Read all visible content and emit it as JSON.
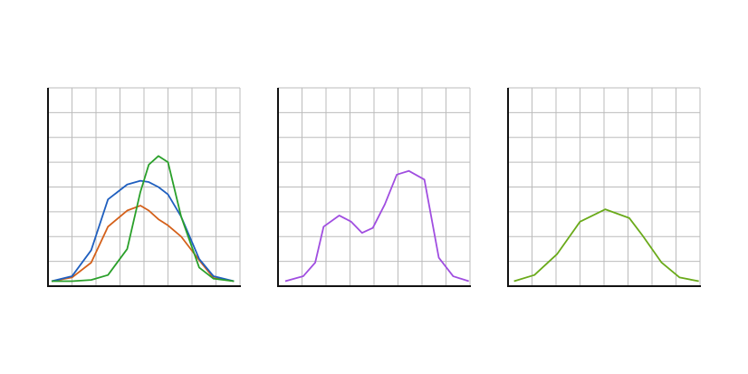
{
  "chart_data": [
    {
      "type": "line",
      "xlim": [
        0,
        8
      ],
      "ylim": [
        0,
        8
      ],
      "xticks": [
        0,
        1,
        2,
        3,
        4,
        5,
        6,
        7,
        8
      ],
      "yticks": [
        0,
        1,
        2,
        3,
        4,
        5,
        6,
        7,
        8
      ],
      "grid": true,
      "x": [
        0.15,
        1,
        1.8,
        2.5,
        3.3,
        3.85,
        4.2,
        4.6,
        5,
        5.55,
        6.3,
        6.9,
        7.75
      ],
      "series": [
        {
          "color": "#d4601a",
          "values": [
            0.2,
            0.35,
            0.95,
            2.4,
            3.05,
            3.25,
            3.05,
            2.7,
            2.45,
            2.0,
            1.05,
            0.33,
            0.2
          ]
        },
        {
          "color": "#1f5fbf",
          "values": [
            0.2,
            0.4,
            1.45,
            3.5,
            4.1,
            4.25,
            4.2,
            4.0,
            3.7,
            2.8,
            1.1,
            0.4,
            0.2
          ]
        },
        {
          "color": "#2aa02a",
          "values": [
            0.2,
            0.2,
            0.25,
            0.45,
            1.5,
            3.8,
            4.9,
            5.25,
            5.0,
            2.8,
            0.75,
            0.3,
            0.2
          ]
        }
      ]
    },
    {
      "type": "line",
      "xlim": [
        0,
        8
      ],
      "ylim": [
        0,
        8
      ],
      "xticks": [
        0,
        1,
        2,
        3,
        4,
        5,
        6,
        7,
        8
      ],
      "yticks": [
        0,
        1,
        2,
        3,
        4,
        5,
        6,
        7,
        8
      ],
      "grid": true,
      "x": [
        0.3,
        1.05,
        1.55,
        1.9,
        2.55,
        3.05,
        3.5,
        3.95,
        4.45,
        4.95,
        5.45,
        6.1,
        6.7,
        7.3,
        7.95
      ],
      "series": [
        {
          "color": "#a04ee0",
          "values": [
            0.2,
            0.4,
            0.95,
            2.4,
            2.85,
            2.6,
            2.15,
            2.35,
            3.3,
            4.5,
            4.65,
            4.3,
            1.15,
            0.4,
            0.2
          ]
        }
      ]
    },
    {
      "type": "line",
      "xlim": [
        0,
        8
      ],
      "ylim": [
        0,
        8
      ],
      "xticks": [
        0,
        1,
        2,
        3,
        4,
        5,
        6,
        7,
        8
      ],
      "yticks": [
        0,
        1,
        2,
        3,
        4,
        5,
        6,
        7,
        8
      ],
      "grid": true,
      "x": [
        0.25,
        1.1,
        2.05,
        3,
        4.05,
        5.05,
        5.6,
        6.4,
        7.15,
        7.95
      ],
      "series": [
        {
          "color": "#6aaa1a",
          "values": [
            0.2,
            0.45,
            1.3,
            2.6,
            3.1,
            2.75,
            2.05,
            0.95,
            0.35,
            0.2
          ]
        }
      ]
    }
  ]
}
